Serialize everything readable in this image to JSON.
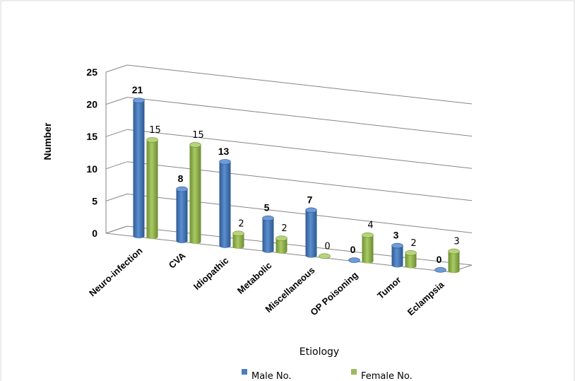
{
  "chart_data": {
    "type": "bar",
    "style": "3d-cylinder",
    "categories": [
      "Neuro-infection",
      "CVA",
      "Idiopathic",
      "Metabolic",
      "Miscellaneous",
      "OP Poisoning",
      "Tumor",
      "Eclampsia"
    ],
    "series": [
      {
        "name": "Male No.",
        "values": [
          21,
          8,
          13,
          5,
          7,
          0,
          3,
          0
        ],
        "color": "#4a7ebb",
        "label_style": "bold"
      },
      {
        "name": "Female No.",
        "values": [
          15,
          15,
          2,
          2,
          0,
          4,
          2,
          3
        ],
        "color": "#9bbb59",
        "label_style": "normal"
      }
    ],
    "xlabel": "Etiology",
    "ylabel": "Number",
    "ylim": [
      0,
      25
    ],
    "yticks": [
      0,
      5,
      10,
      15,
      20,
      25
    ],
    "grid": true,
    "legend_position": "bottom"
  }
}
